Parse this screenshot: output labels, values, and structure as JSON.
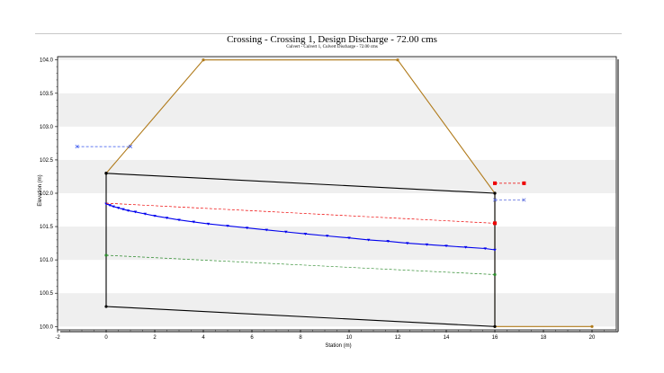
{
  "chart_data": {
    "type": "line",
    "title": "Crossing - Crossing 1, Design Discharge - 72.00 cms",
    "subtitle": "Culvert - Culvert 1, Culvert Discharge - 72.00 cms",
    "xlabel": "Station (m)",
    "ylabel": "Elevation (m)",
    "xlim": [
      -2,
      21
    ],
    "ylim": [
      99.95,
      104.05
    ],
    "xticks": [
      -2,
      0,
      2,
      4,
      6,
      8,
      10,
      12,
      14,
      16,
      18,
      20
    ],
    "yticks": [
      "100.0",
      "100.5",
      "101.0",
      "101.5",
      "102.0",
      "102.5",
      "103.0",
      "103.5",
      "104.0"
    ],
    "grid": "horizontal bands",
    "series": [
      {
        "color": "#b07a1a",
        "style": "solid",
        "marker": "dot",
        "x": [
          0,
          4,
          12,
          16,
          16,
          20
        ],
        "y": [
          102.3,
          104.0,
          104.0,
          102.0,
          100.0,
          100.0
        ]
      },
      {
        "color": "#000000",
        "style": "solid",
        "marker": "dot",
        "x": [
          0,
          16,
          16,
          0,
          0
        ],
        "y": [
          102.3,
          102.0,
          100.0,
          100.3,
          102.3
        ]
      },
      {
        "color": "#0000ee",
        "style": "solid",
        "marker": "triangle",
        "x": [
          0,
          0.15,
          0.3,
          0.5,
          0.7,
          0.9,
          1.2,
          1.6,
          2.0,
          2.5,
          3.0,
          3.6,
          4.2,
          5.0,
          5.8,
          6.6,
          7.4,
          8.2,
          9.1,
          10.0,
          10.8,
          11.6,
          12.4,
          13.2,
          14.0,
          14.8,
          15.6,
          16.0
        ],
        "y": [
          101.84,
          101.82,
          101.8,
          101.78,
          101.76,
          101.74,
          101.72,
          101.69,
          101.66,
          101.63,
          101.6,
          101.57,
          101.54,
          101.51,
          101.48,
          101.45,
          101.42,
          101.39,
          101.36,
          101.33,
          101.3,
          101.28,
          101.25,
          101.23,
          101.21,
          101.19,
          101.17,
          101.15
        ]
      },
      {
        "color": "#ee0000",
        "style": "dashed",
        "marker": "none",
        "x": [
          0,
          16
        ],
        "y": [
          101.85,
          101.55
        ]
      },
      {
        "color": "#ee0000",
        "style": "dashed",
        "marker": "square",
        "x": [
          16,
          17.2
        ],
        "y": [
          102.15,
          102.15
        ]
      },
      {
        "color": "#ee0000",
        "style": "none",
        "marker": "square",
        "x": [
          16
        ],
        "y": [
          101.55
        ]
      },
      {
        "color": "#2e8b2e",
        "style": "dashed",
        "marker": "dot",
        "x": [
          0,
          16
        ],
        "y": [
          101.07,
          100.78
        ]
      },
      {
        "color": "#3050ee",
        "style": "dashed",
        "marker": "cross",
        "x": [
          -1.2,
          1.0
        ],
        "y": [
          102.7,
          102.7
        ]
      },
      {
        "color": "#5a6bdd",
        "style": "dashed",
        "marker": "cross",
        "x": [
          16,
          17.2
        ],
        "y": [
          101.9,
          101.9
        ]
      }
    ]
  }
}
